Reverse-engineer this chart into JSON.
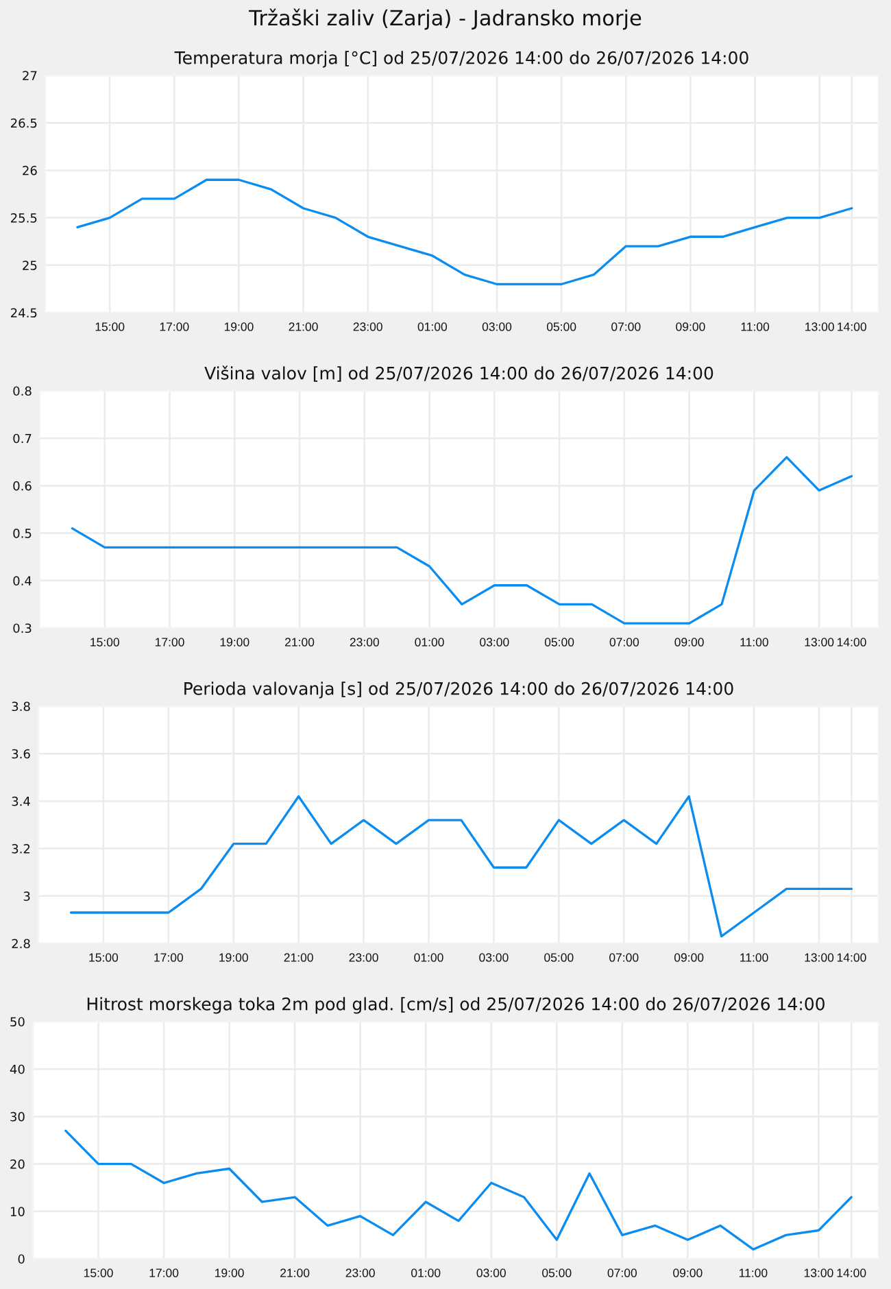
{
  "chart_data": [
    {
      "type": "line",
      "title": "Tržaški zaliv (Zarja) - Jadransko morje",
      "subtitle": "Temperatura morja [°C] od 25/07/2026 14:00 do 26/07/2026 14:00",
      "x": [
        "2026-07-25T14:00",
        "2026-07-25T15:00",
        "2026-07-25T16:00",
        "2026-07-25T17:00",
        "2026-07-25T18:00",
        "2026-07-25T19:00",
        "2026-07-25T20:00",
        "2026-07-25T21:00",
        "2026-07-25T22:00",
        "2026-07-25T23:00",
        "2026-07-26T00:00",
        "2026-07-26T01:00",
        "2026-07-26T02:00",
        "2026-07-26T03:00",
        "2026-07-26T04:00",
        "2026-07-26T05:00",
        "2026-07-26T06:00",
        "2026-07-26T07:00",
        "2026-07-26T08:00",
        "2026-07-26T09:00",
        "2026-07-26T10:00",
        "2026-07-26T11:00",
        "2026-07-26T12:00",
        "2026-07-26T13:00",
        "2026-07-26T14:00"
      ],
      "series": [
        {
          "color": "#0a8cf0",
          "values": [
            25.4,
            25.5,
            25.7,
            25.7,
            25.9,
            25.9,
            25.8,
            25.6,
            25.5,
            25.3,
            25.2,
            25.1,
            24.9,
            24.8,
            24.8,
            24.8,
            24.9,
            25.2,
            25.2,
            25.3,
            25.3,
            25.4,
            25.5,
            25.5,
            25.6
          ]
        }
      ],
      "xlim": [
        "2026-07-25T13:00",
        "2026-07-26T14:50"
      ],
      "xticks": [
        {
          "value": "2026-07-25T15:00",
          "label": "15:00"
        },
        {
          "value": "2026-07-25T17:00",
          "label": "17:00"
        },
        {
          "value": "2026-07-25T19:00",
          "label": "19:00"
        },
        {
          "value": "2026-07-25T21:00",
          "label": "21:00"
        },
        {
          "value": "2026-07-25T23:00",
          "label": "23:00"
        },
        {
          "value": "2026-07-26T01:00",
          "label": "01:00"
        },
        {
          "value": "2026-07-26T03:00",
          "label": "03:00"
        },
        {
          "value": "2026-07-26T05:00",
          "label": "05:00"
        },
        {
          "value": "2026-07-26T07:00",
          "label": "07:00"
        },
        {
          "value": "2026-07-26T09:00",
          "label": "09:00"
        },
        {
          "value": "2026-07-26T11:00",
          "label": "11:00"
        },
        {
          "value": "2026-07-26T13:00",
          "label": "13:00"
        },
        {
          "value": "2026-07-26T14:00",
          "label": "14:00"
        }
      ],
      "ylim": [
        24.5,
        27
      ],
      "yticks": [
        24.5,
        25,
        25.5,
        26,
        26.5,
        27
      ],
      "grid": true,
      "marker": "none",
      "line_style": "solid"
    },
    {
      "type": "line",
      "title": "Višina valov [m] od 25/07/2026 14:00 do 26/07/2026 14:00",
      "x": [
        "2026-07-25T14:00",
        "2026-07-25T15:00",
        "2026-07-25T16:00",
        "2026-07-25T17:00",
        "2026-07-25T18:00",
        "2026-07-25T19:00",
        "2026-07-25T20:00",
        "2026-07-25T21:00",
        "2026-07-25T22:00",
        "2026-07-25T23:00",
        "2026-07-26T00:00",
        "2026-07-26T01:00",
        "2026-07-26T02:00",
        "2026-07-26T03:00",
        "2026-07-26T04:00",
        "2026-07-26T05:00",
        "2026-07-26T06:00",
        "2026-07-26T07:00",
        "2026-07-26T08:00",
        "2026-07-26T09:00",
        "2026-07-26T10:00",
        "2026-07-26T11:00",
        "2026-07-26T12:00",
        "2026-07-26T13:00",
        "2026-07-26T14:00"
      ],
      "series": [
        {
          "color": "#0a8cf0",
          "values": [
            0.51,
            0.47,
            0.47,
            0.47,
            0.47,
            0.47,
            0.47,
            0.47,
            0.47,
            0.47,
            0.47,
            0.43,
            0.35,
            0.39,
            0.39,
            0.35,
            0.35,
            0.31,
            0.31,
            0.31,
            0.35,
            0.59,
            0.66,
            0.59,
            0.62
          ]
        }
      ],
      "xlim": [
        "2026-07-25T13:00",
        "2026-07-26T14:50"
      ],
      "xticks": [
        {
          "value": "2026-07-25T15:00",
          "label": "15:00"
        },
        {
          "value": "2026-07-25T17:00",
          "label": "17:00"
        },
        {
          "value": "2026-07-25T19:00",
          "label": "19:00"
        },
        {
          "value": "2026-07-25T21:00",
          "label": "21:00"
        },
        {
          "value": "2026-07-25T23:00",
          "label": "23:00"
        },
        {
          "value": "2026-07-26T01:00",
          "label": "01:00"
        },
        {
          "value": "2026-07-26T03:00",
          "label": "03:00"
        },
        {
          "value": "2026-07-26T05:00",
          "label": "05:00"
        },
        {
          "value": "2026-07-26T07:00",
          "label": "07:00"
        },
        {
          "value": "2026-07-26T09:00",
          "label": "09:00"
        },
        {
          "value": "2026-07-26T11:00",
          "label": "11:00"
        },
        {
          "value": "2026-07-26T13:00",
          "label": "13:00"
        },
        {
          "value": "2026-07-26T14:00",
          "label": "14:00"
        }
      ],
      "ylim": [
        0.3,
        0.8
      ],
      "yticks": [
        0.3,
        0.4,
        0.5,
        0.6,
        0.7,
        0.8
      ],
      "grid": true,
      "marker": "none",
      "line_style": "solid"
    },
    {
      "type": "line",
      "title": "Perioda valovanja [s] od 25/07/2026 14:00 do 26/07/2026 14:00",
      "x": [
        "2026-07-25T14:00",
        "2026-07-25T15:00",
        "2026-07-25T16:00",
        "2026-07-25T17:00",
        "2026-07-25T18:00",
        "2026-07-25T19:00",
        "2026-07-25T20:00",
        "2026-07-25T21:00",
        "2026-07-25T22:00",
        "2026-07-25T23:00",
        "2026-07-26T00:00",
        "2026-07-26T01:00",
        "2026-07-26T02:00",
        "2026-07-26T03:00",
        "2026-07-26T04:00",
        "2026-07-26T05:00",
        "2026-07-26T06:00",
        "2026-07-26T07:00",
        "2026-07-26T08:00",
        "2026-07-26T09:00",
        "2026-07-26T10:00",
        "2026-07-26T11:00",
        "2026-07-26T12:00",
        "2026-07-26T13:00",
        "2026-07-26T14:00"
      ],
      "series": [
        {
          "color": "#0a8cf0",
          "values": [
            2.93,
            2.93,
            2.93,
            2.93,
            3.03,
            3.22,
            3.22,
            3.42,
            3.22,
            3.32,
            3.22,
            3.32,
            3.32,
            3.12,
            3.12,
            3.32,
            3.22,
            3.32,
            3.22,
            3.42,
            2.83,
            2.93,
            3.03,
            3.03,
            3.03
          ]
        }
      ],
      "xlim": [
        "2026-07-25T13:00",
        "2026-07-26T14:50"
      ],
      "xticks": [
        {
          "value": "2026-07-25T15:00",
          "label": "15:00"
        },
        {
          "value": "2026-07-25T17:00",
          "label": "17:00"
        },
        {
          "value": "2026-07-25T19:00",
          "label": "19:00"
        },
        {
          "value": "2026-07-25T21:00",
          "label": "21:00"
        },
        {
          "value": "2026-07-25T23:00",
          "label": "23:00"
        },
        {
          "value": "2026-07-26T01:00",
          "label": "01:00"
        },
        {
          "value": "2026-07-26T03:00",
          "label": "03:00"
        },
        {
          "value": "2026-07-26T05:00",
          "label": "05:00"
        },
        {
          "value": "2026-07-26T07:00",
          "label": "07:00"
        },
        {
          "value": "2026-07-26T09:00",
          "label": "09:00"
        },
        {
          "value": "2026-07-26T11:00",
          "label": "11:00"
        },
        {
          "value": "2026-07-26T13:00",
          "label": "13:00"
        },
        {
          "value": "2026-07-26T14:00",
          "label": "14:00"
        }
      ],
      "ylim": [
        2.8,
        3.8
      ],
      "yticks": [
        2.8,
        3,
        3.2,
        3.4,
        3.6,
        3.8
      ],
      "grid": true,
      "marker": "none",
      "line_style": "solid"
    },
    {
      "type": "line",
      "title": "Hitrost morskega toka 2m pod glad. [cm/s] od 25/07/2026 14:00 do 26/07/2026 14:00",
      "x": [
        "2026-07-25T14:00",
        "2026-07-25T15:00",
        "2026-07-25T16:00",
        "2026-07-25T17:00",
        "2026-07-25T18:00",
        "2026-07-25T19:00",
        "2026-07-25T20:00",
        "2026-07-25T21:00",
        "2026-07-25T22:00",
        "2026-07-25T23:00",
        "2026-07-26T00:00",
        "2026-07-26T01:00",
        "2026-07-26T02:00",
        "2026-07-26T03:00",
        "2026-07-26T04:00",
        "2026-07-26T05:00",
        "2026-07-26T06:00",
        "2026-07-26T07:00",
        "2026-07-26T08:00",
        "2026-07-26T09:00",
        "2026-07-26T10:00",
        "2026-07-26T11:00",
        "2026-07-26T12:00",
        "2026-07-26T13:00",
        "2026-07-26T14:00"
      ],
      "series": [
        {
          "color": "#0a8cf0",
          "values": [
            27,
            20,
            20,
            16,
            18,
            19,
            12,
            13,
            7,
            9,
            5,
            12,
            8,
            16,
            13,
            4,
            18,
            5,
            7,
            4,
            7,
            2,
            5,
            6,
            13
          ]
        }
      ],
      "xlim": [
        "2026-07-25T13:00",
        "2026-07-26T14:50"
      ],
      "xticks": [
        {
          "value": "2026-07-25T15:00",
          "label": "15:00"
        },
        {
          "value": "2026-07-25T17:00",
          "label": "17:00"
        },
        {
          "value": "2026-07-25T19:00",
          "label": "19:00"
        },
        {
          "value": "2026-07-25T21:00",
          "label": "21:00"
        },
        {
          "value": "2026-07-25T23:00",
          "label": "23:00"
        },
        {
          "value": "2026-07-26T01:00",
          "label": "01:00"
        },
        {
          "value": "2026-07-26T03:00",
          "label": "03:00"
        },
        {
          "value": "2026-07-26T05:00",
          "label": "05:00"
        },
        {
          "value": "2026-07-26T07:00",
          "label": "07:00"
        },
        {
          "value": "2026-07-26T09:00",
          "label": "09:00"
        },
        {
          "value": "2026-07-26T11:00",
          "label": "11:00"
        },
        {
          "value": "2026-07-26T13:00",
          "label": "13:00"
        },
        {
          "value": "2026-07-26T14:00",
          "label": "14:00"
        }
      ],
      "ylim": [
        0,
        50
      ],
      "yticks": [
        0,
        10,
        20,
        30,
        40,
        50
      ],
      "grid": true,
      "marker": "none",
      "line_style": "solid"
    }
  ]
}
